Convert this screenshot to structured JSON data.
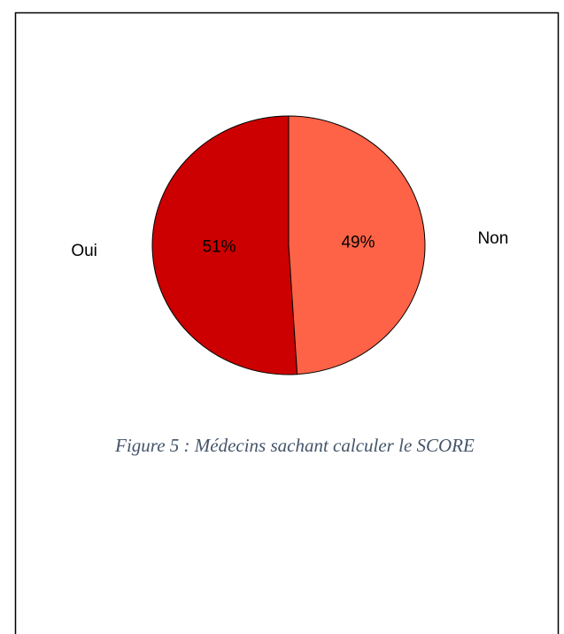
{
  "chart_data": {
    "type": "pie",
    "caption": "Figure 5 : Médecins sachant calculer le SCORE",
    "categories": [
      "Oui",
      "Non"
    ],
    "values": [
      51,
      49
    ],
    "value_labels": [
      "51%",
      "49%"
    ],
    "colors": [
      "#cc0000",
      "#ff6347"
    ]
  }
}
